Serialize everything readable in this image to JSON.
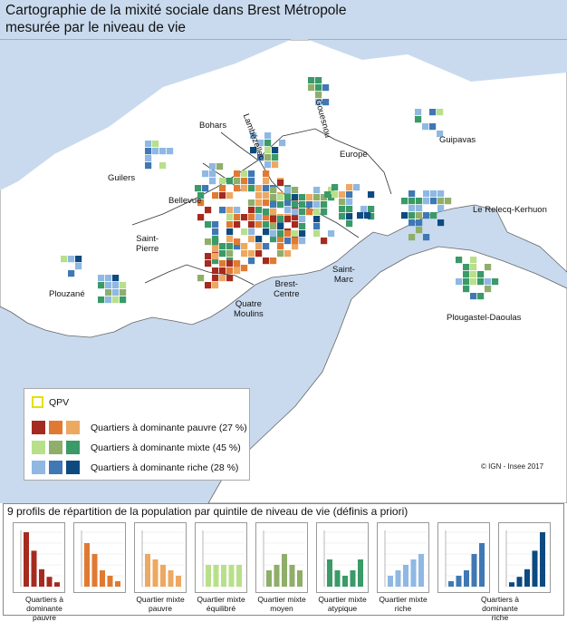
{
  "title": "Cartographie de la mixité sociale dans Brest Métropole\nmesurée par le niveau de vie",
  "places": [
    {
      "name": "Bohars"
    },
    {
      "name": "Lambézellec"
    },
    {
      "name": "Gouesnou"
    },
    {
      "name": "Guipavas"
    },
    {
      "name": "Guilers"
    },
    {
      "name": "Europe"
    },
    {
      "name": "Bellevue"
    },
    {
      "name": "Le Relecq-Kerhuon"
    },
    {
      "name": "Saint-\nPierre"
    },
    {
      "name": "Saint-\nMarc"
    },
    {
      "name": "Brest-\nCentre"
    },
    {
      "name": "Plouzané"
    },
    {
      "name": "Quatre\nMoulins"
    },
    {
      "name": "Plougastel-Daoulas"
    }
  ],
  "legend": {
    "qpv": "QPV",
    "items": [
      {
        "label": "Quartiers à dominante pauvre (27 %)",
        "colors": [
          "#a52a1f",
          "#e07a32",
          "#eda862"
        ]
      },
      {
        "label": "Quartiers à dominante mixte (45 %)",
        "colors": [
          "#b8e08a",
          "#8fae6a",
          "#3a9a68"
        ]
      },
      {
        "label": "Quartiers à dominante riche (28 %)",
        "colors": [
          "#8fb8e3",
          "#3f78b4",
          "#0d4a80"
        ]
      }
    ]
  },
  "credit": "© IGN - Insee 2017",
  "profiles": {
    "title": "9 profils de répartition de la population par quintile de niveau de vie (définis a priori)",
    "charts": [
      {
        "color": "#a52a1f",
        "values": [
          50,
          33,
          16,
          9,
          4
        ]
      },
      {
        "color": "#e07a32",
        "values": [
          40,
          30,
          15,
          10,
          5
        ]
      },
      {
        "color": "#eda862",
        "values": [
          30,
          25,
          20,
          15,
          10
        ]
      },
      {
        "color": "#b8e08a",
        "values": [
          20,
          20,
          20,
          20,
          20
        ]
      },
      {
        "color": "#8fae6a",
        "values": [
          15,
          20,
          30,
          20,
          15
        ]
      },
      {
        "color": "#3a9a68",
        "values": [
          25,
          15,
          10,
          15,
          25
        ]
      },
      {
        "color": "#8fb8e3",
        "values": [
          10,
          15,
          20,
          25,
          30
        ]
      },
      {
        "color": "#3f78b4",
        "values": [
          5,
          10,
          15,
          30,
          40
        ]
      },
      {
        "color": "#0d4a80",
        "values": [
          4,
          9,
          16,
          33,
          50
        ]
      }
    ],
    "labels": [
      {
        "text": "Quartiers à dominante\npauvre"
      },
      {
        "text": "Quartier mixte\npauvre"
      },
      {
        "text": "Quartier mixte\néquilibré"
      },
      {
        "text": "Quartier mixte\nmoyen"
      },
      {
        "text": "Quartier mixte\natypique"
      },
      {
        "text": "Quartier mixte\nriche"
      },
      {
        "text": "Quartiers à dominante\nriche"
      }
    ]
  }
}
